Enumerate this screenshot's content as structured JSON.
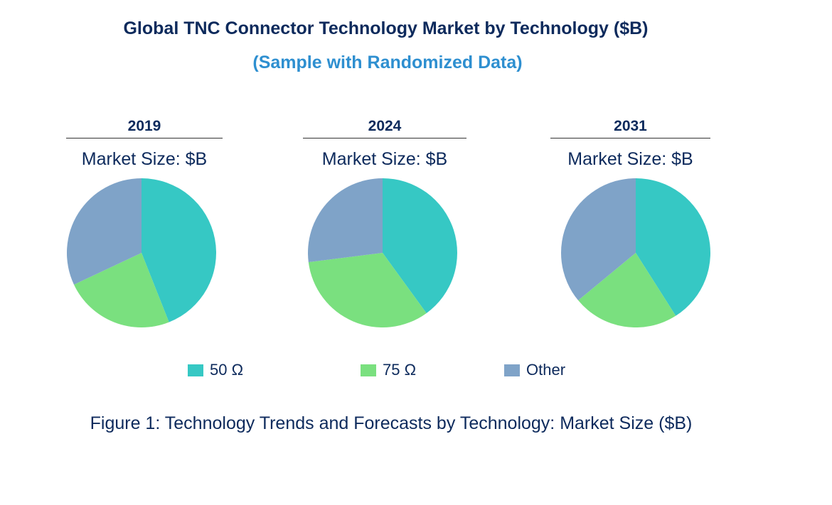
{
  "title": "Global TNC Connector Technology Market by Technology ($B)",
  "subtitle": "(Sample with Randomized Data)",
  "caption": "Figure 1: Technology Trends and Forecasts by Technology: Market Size ($B)",
  "colors": {
    "s50": "#36c8c4",
    "s75": "#7ae07f",
    "other": "#7fa3c8"
  },
  "chart_data": [
    {
      "type": "pie",
      "title": "2019",
      "subtitle": "Market Size: $B",
      "categories": [
        "50 Ω",
        "75 Ω",
        "Other"
      ],
      "values": [
        44,
        24,
        32
      ]
    },
    {
      "type": "pie",
      "title": "2024",
      "subtitle": "Market Size: $B",
      "categories": [
        "50 Ω",
        "75 Ω",
        "Other"
      ],
      "values": [
        40,
        33,
        27
      ]
    },
    {
      "type": "pie",
      "title": "2031",
      "subtitle": "Market Size: $B",
      "categories": [
        "50 Ω",
        "75 Ω",
        "Other"
      ],
      "values": [
        41,
        23,
        36
      ]
    }
  ],
  "legend": [
    {
      "label": "50 Ω",
      "color": "#36c8c4"
    },
    {
      "label": "75 Ω",
      "color": "#7ae07f"
    },
    {
      "label": "Other",
      "color": "#7fa3c8"
    }
  ]
}
